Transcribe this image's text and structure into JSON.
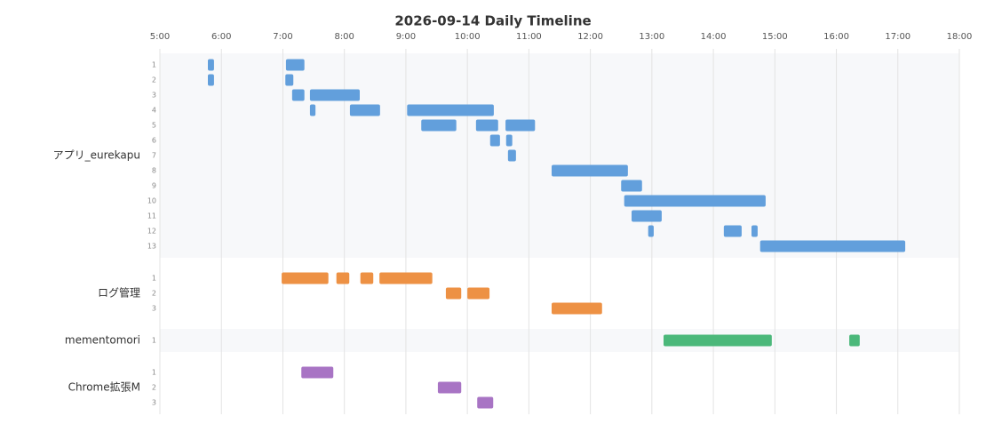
{
  "chart_data": {
    "type": "timeline",
    "title": "2026-09-14 Daily Timeline",
    "xlim": [
      5,
      18
    ],
    "xticks": [
      {
        "value": 5,
        "label": "5:00"
      },
      {
        "value": 6,
        "label": "6:00"
      },
      {
        "value": 7,
        "label": "7:00"
      },
      {
        "value": 8,
        "label": "8:00"
      },
      {
        "value": 9,
        "label": "9:00"
      },
      {
        "value": 10,
        "label": "10:00"
      },
      {
        "value": 11,
        "label": "11:00"
      },
      {
        "value": 12,
        "label": "12:00"
      },
      {
        "value": 13,
        "label": "13:00"
      },
      {
        "value": 14,
        "label": "14:00"
      },
      {
        "value": 15,
        "label": "15:00"
      },
      {
        "value": 16,
        "label": "16:00"
      },
      {
        "value": 17,
        "label": "17:00"
      },
      {
        "value": 18,
        "label": "18:00"
      }
    ],
    "grid": true,
    "groups": [
      {
        "name": "アプリ_eurekapu",
        "color": "#629fdc",
        "rows": [
          {
            "label": "1",
            "bars": [
              [
                5.78,
                5.88
              ],
              [
                7.05,
                7.35
              ]
            ]
          },
          {
            "label": "2",
            "bars": [
              [
                5.78,
                5.88
              ],
              [
                7.04,
                7.17
              ]
            ]
          },
          {
            "label": "3",
            "bars": [
              [
                7.15,
                7.35
              ],
              [
                7.44,
                8.25
              ]
            ]
          },
          {
            "label": "4",
            "bars": [
              [
                7.44,
                7.53
              ],
              [
                8.09,
                8.58
              ],
              [
                9.02,
                10.43
              ]
            ]
          },
          {
            "label": "5",
            "bars": [
              [
                9.25,
                9.82
              ],
              [
                10.14,
                10.5
              ],
              [
                10.62,
                11.1
              ]
            ]
          },
          {
            "label": "6",
            "bars": [
              [
                10.37,
                10.53
              ],
              [
                10.63,
                10.73
              ]
            ]
          },
          {
            "label": "7",
            "bars": [
              [
                10.66,
                10.79
              ]
            ]
          },
          {
            "label": "8",
            "bars": [
              [
                11.37,
                12.61
              ]
            ]
          },
          {
            "label": "9",
            "bars": [
              [
                12.5,
                12.84
              ]
            ]
          },
          {
            "label": "10",
            "bars": [
              [
                12.55,
                14.85
              ]
            ]
          },
          {
            "label": "11",
            "bars": [
              [
                12.67,
                13.16
              ]
            ]
          },
          {
            "label": "12",
            "bars": [
              [
                12.94,
                13.03
              ],
              [
                14.17,
                14.46
              ],
              [
                14.62,
                14.72
              ]
            ]
          },
          {
            "label": "13",
            "bars": [
              [
                14.76,
                17.12
              ]
            ]
          }
        ]
      },
      {
        "name": "ログ管理",
        "color": "#ed9144",
        "rows": [
          {
            "label": "1",
            "bars": [
              [
                6.98,
                7.74
              ],
              [
                7.87,
                8.08
              ],
              [
                8.26,
                8.47
              ],
              [
                8.57,
                9.43
              ]
            ]
          },
          {
            "label": "2",
            "bars": [
              [
                9.65,
                9.9
              ],
              [
                10.0,
                10.36
              ]
            ]
          },
          {
            "label": "3",
            "bars": [
              [
                11.37,
                12.19
              ]
            ]
          }
        ]
      },
      {
        "name": "mementomori",
        "color": "#4bb87a",
        "rows": [
          {
            "label": "1",
            "bars": [
              [
                13.19,
                14.95
              ],
              [
                16.21,
                16.38
              ]
            ]
          }
        ]
      },
      {
        "name": "Chrome拡張M",
        "color": "#a874c4",
        "rows": [
          {
            "label": "1",
            "bars": [
              [
                7.3,
                7.82
              ]
            ]
          },
          {
            "label": "2",
            "bars": [
              [
                9.52,
                9.9
              ]
            ]
          },
          {
            "label": "3",
            "bars": [
              [
                10.16,
                10.42
              ]
            ]
          }
        ]
      }
    ]
  }
}
